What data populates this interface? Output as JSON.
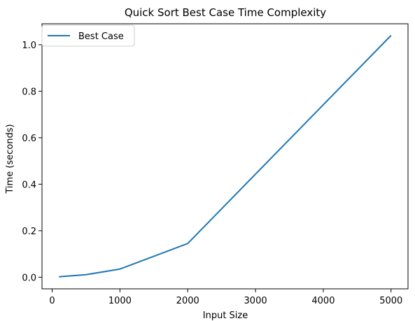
{
  "chart_data": {
    "type": "line",
    "title": "Quick Sort Best Case Time Complexity",
    "xlabel": "Input Size",
    "ylabel": "Time (seconds)",
    "xlim": [
      -150,
      5250
    ],
    "ylim": [
      -0.05,
      1.09
    ],
    "x_ticks": [
      0,
      1000,
      2000,
      3000,
      4000,
      5000
    ],
    "y_ticks": [
      0.0,
      0.2,
      0.4,
      0.6,
      0.8,
      1.0
    ],
    "x_tick_labels": [
      "0",
      "1000",
      "2000",
      "3000",
      "4000",
      "5000"
    ],
    "y_tick_labels": [
      "0.0",
      "0.2",
      "0.4",
      "0.6",
      "0.8",
      "1.0"
    ],
    "grid": false,
    "legend_position": "top-left",
    "series": [
      {
        "name": "Best Case",
        "color": "#1f77b4",
        "x": [
          100,
          500,
          1000,
          2000,
          5000
        ],
        "y": [
          0.002,
          0.011,
          0.035,
          0.145,
          1.04
        ]
      }
    ]
  }
}
